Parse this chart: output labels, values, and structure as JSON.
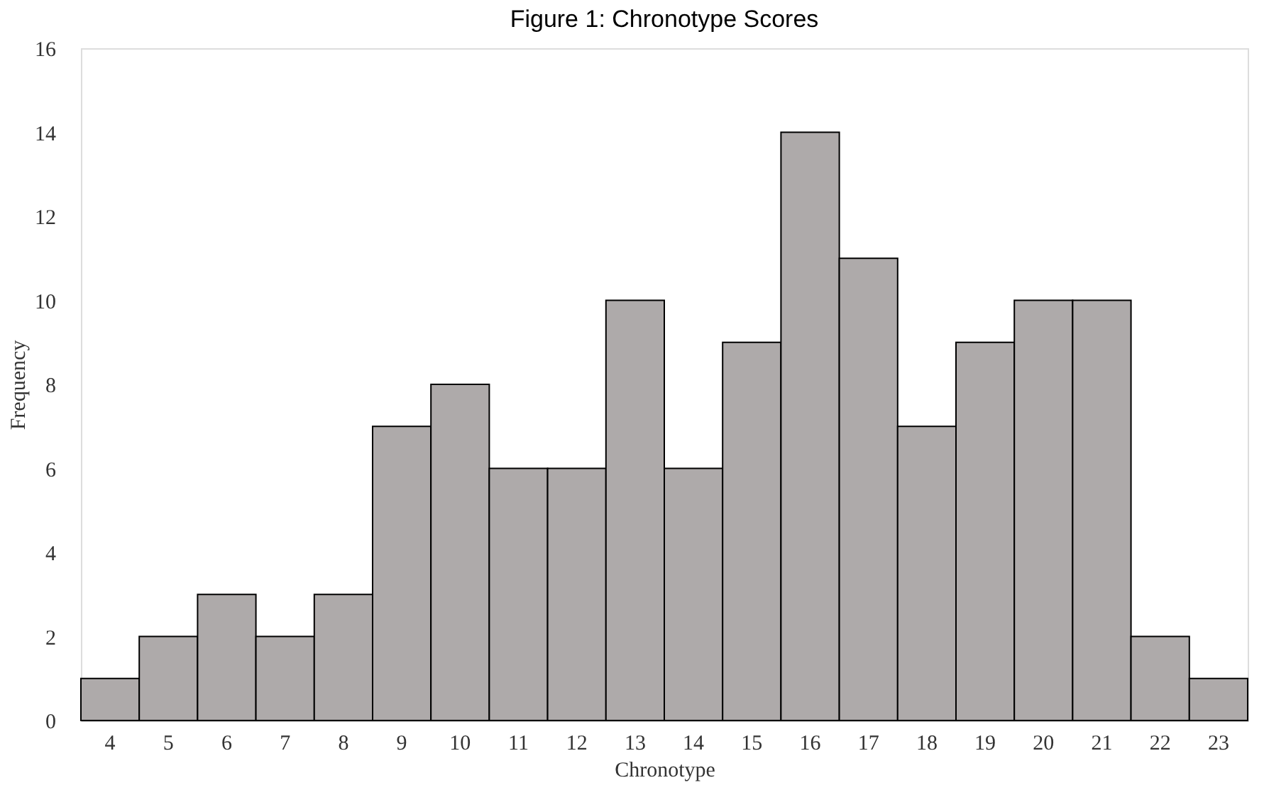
{
  "chart_data": {
    "type": "bar",
    "title": "Figure 1: Chronotype Scores",
    "xlabel": "Chronotype",
    "ylabel": "Frequency",
    "categories": [
      "4",
      "5",
      "6",
      "7",
      "8",
      "9",
      "10",
      "11",
      "12",
      "13",
      "14",
      "15",
      "16",
      "17",
      "18",
      "19",
      "20",
      "21",
      "22",
      "23"
    ],
    "values": [
      1,
      2,
      3,
      2,
      3,
      7,
      8,
      6,
      6,
      10,
      6,
      9,
      14,
      11,
      7,
      9,
      10,
      10,
      2,
      1
    ],
    "color": "#aeaaaa",
    "ylim": [
      0,
      16
    ],
    "yticks": [
      0,
      2,
      4,
      6,
      8,
      10,
      12,
      14,
      16
    ],
    "grid": false
  }
}
